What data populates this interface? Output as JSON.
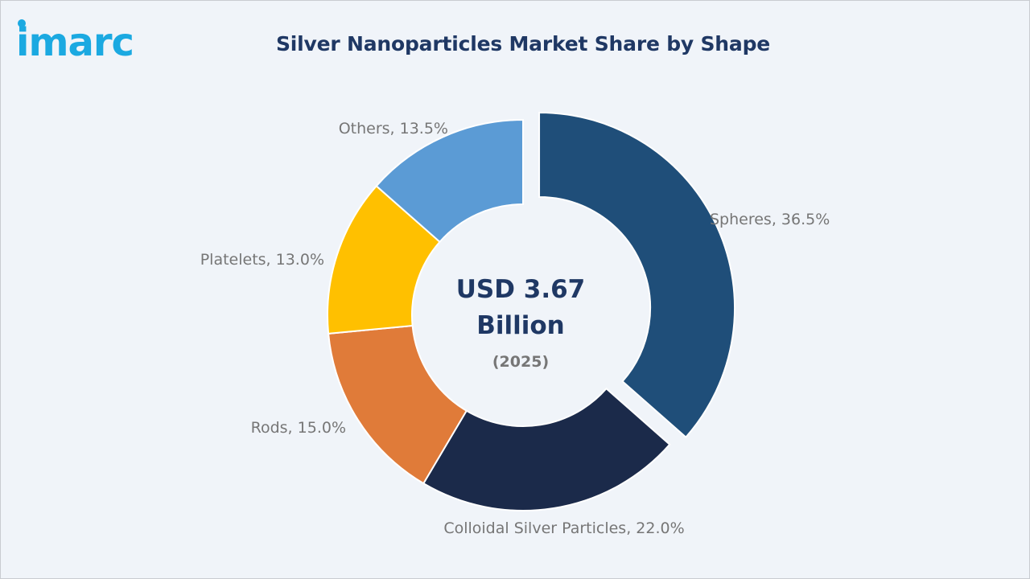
{
  "brand": {
    "logo_text": "imarc",
    "logo_color": "#1ba9e1"
  },
  "chart_data": {
    "type": "pie",
    "title": "Silver Nanoparticles Market Share by Shape",
    "center_text": [
      "USD 3.67",
      "Billion"
    ],
    "center_subtext": "(2025)",
    "donut": true,
    "exploded": "Spheres",
    "slices": [
      {
        "name": "Spheres",
        "value": 36.5,
        "label": "Spheres, 36.5%",
        "color": "#1f4e79"
      },
      {
        "name": "Colloidal Silver Particles",
        "value": 22.0,
        "label": "Colloidal Silver Particles, 22.0%",
        "color": "#1b2a4a"
      },
      {
        "name": "Rods",
        "value": 15.0,
        "label": "Rods, 15.0%",
        "color": "#e07b39"
      },
      {
        "name": "Platelets",
        "value": 13.0,
        "label": "Platelets, 13.0%",
        "color": "#ffc000"
      },
      {
        "name": "Others",
        "value": 13.5,
        "label": "Others, 13.5%",
        "color": "#5b9bd5"
      }
    ]
  }
}
